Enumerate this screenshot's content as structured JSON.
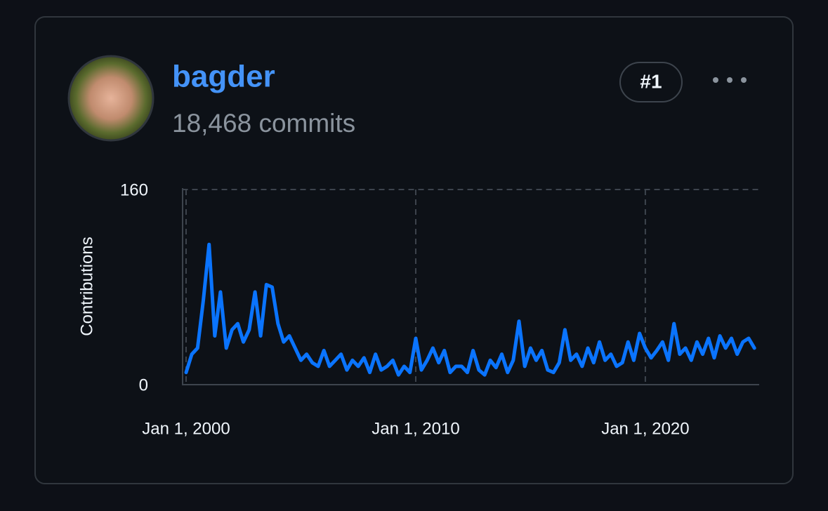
{
  "user": {
    "name": "bagder",
    "commits": "18,468 commits",
    "rank": "#1"
  },
  "chart_data": {
    "type": "line",
    "y_label": "Contributions",
    "x": [
      "2000-01-01",
      "2000-04-01",
      "2000-07-01",
      "2000-10-01",
      "2001-01-01",
      "2001-04-01",
      "2001-07-01",
      "2001-10-01",
      "2002-01-01",
      "2002-04-01",
      "2002-07-01",
      "2002-10-01",
      "2003-01-01",
      "2003-04-01",
      "2003-07-01",
      "2003-10-01",
      "2004-01-01",
      "2004-04-01",
      "2004-07-01",
      "2004-10-01",
      "2005-01-01",
      "2005-04-01",
      "2005-07-01",
      "2005-10-01",
      "2006-01-01",
      "2006-04-01",
      "2006-07-01",
      "2006-10-01",
      "2007-01-01",
      "2007-04-01",
      "2007-07-01",
      "2007-10-01",
      "2008-01-01",
      "2008-04-01",
      "2008-07-01",
      "2008-10-01",
      "2009-01-01",
      "2009-04-01",
      "2009-07-01",
      "2009-10-01",
      "2010-01-01",
      "2010-04-01",
      "2010-07-01",
      "2010-10-01",
      "2011-01-01",
      "2011-04-01",
      "2011-07-01",
      "2011-10-01",
      "2012-01-01",
      "2012-04-01",
      "2012-07-01",
      "2012-10-01",
      "2013-01-01",
      "2013-04-01",
      "2013-07-01",
      "2013-10-01",
      "2014-01-01",
      "2014-04-01",
      "2014-07-01",
      "2014-10-01",
      "2015-01-01",
      "2015-04-01",
      "2015-07-01",
      "2015-10-01",
      "2016-01-01",
      "2016-04-01",
      "2016-07-01",
      "2016-10-01",
      "2017-01-01",
      "2017-04-01",
      "2017-07-01",
      "2017-10-01",
      "2018-01-01",
      "2018-04-01",
      "2018-07-01",
      "2018-10-01",
      "2019-01-01",
      "2019-04-01",
      "2019-07-01",
      "2019-10-01",
      "2020-01-01",
      "2020-04-01",
      "2020-07-01",
      "2020-10-01",
      "2021-01-01",
      "2021-04-01",
      "2021-07-01",
      "2021-10-01",
      "2022-01-01",
      "2022-04-01",
      "2022-07-01",
      "2022-10-01",
      "2023-01-01",
      "2023-04-01",
      "2023-07-01",
      "2023-10-01",
      "2024-01-01",
      "2024-04-01",
      "2024-07-01",
      "2024-10-01"
    ],
    "series": [
      {
        "name": "bagder",
        "color": "#0a74ff",
        "values": [
          10,
          25,
          30,
          69,
          115,
          40,
          76,
          30,
          45,
          50,
          35,
          45,
          76,
          40,
          82,
          80,
          50,
          35,
          40,
          30,
          20,
          25,
          18,
          15,
          28,
          15,
          20,
          25,
          12,
          20,
          15,
          22,
          10,
          25,
          12,
          15,
          20,
          8,
          15,
          10,
          38,
          12,
          20,
          30,
          18,
          28,
          10,
          15,
          15,
          10,
          28,
          12,
          8,
          20,
          14,
          25,
          10,
          20,
          52,
          15,
          30,
          20,
          28,
          12,
          10,
          18,
          45,
          20,
          25,
          15,
          30,
          18,
          35,
          20,
          25,
          15,
          18,
          35,
          20,
          42,
          30,
          22,
          28,
          35,
          20,
          50,
          25,
          30,
          20,
          35,
          25,
          38,
          22,
          40,
          30,
          38,
          25,
          35,
          38,
          30
        ]
      }
    ],
    "xlim": [
      "1999-11-01",
      "2024-11-01"
    ],
    "xticks": [
      {
        "value": "2000-01-01",
        "label": "Jan 1, 2000"
      },
      {
        "value": "2010-01-01",
        "label": "Jan 1, 2010"
      },
      {
        "value": "2020-01-01",
        "label": "Jan 1, 2020"
      }
    ],
    "ylim": [
      0,
      160
    ],
    "yticks": [
      0,
      160
    ],
    "grid": true
  }
}
